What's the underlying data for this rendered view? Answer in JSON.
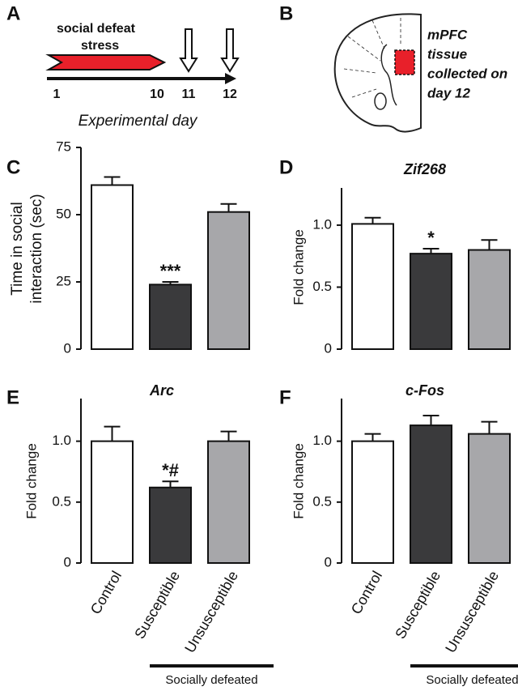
{
  "panel_labels": [
    "A",
    "B",
    "C",
    "D",
    "E",
    "F"
  ],
  "timeline": {
    "stress_label": [
      "social defeat",
      "stress"
    ],
    "days": [
      "1",
      "10",
      "11",
      "12"
    ],
    "axis_label": "Experimental day"
  },
  "brain": {
    "annotation": [
      "mPFC",
      "tissue",
      "collected on",
      "day 12"
    ]
  },
  "chart_data": [
    {
      "type": "bar",
      "ylabel": [
        "Time in social",
        "interaction (sec)"
      ],
      "values": [
        61,
        24,
        51
      ],
      "errors": [
        3,
        1,
        3
      ],
      "colors": [
        "#ffffff",
        "#3a3a3c",
        "#a7a7aa"
      ],
      "significance": [
        null,
        "***",
        null
      ],
      "ylim": [
        0,
        75
      ],
      "yticks": [
        0,
        25,
        50,
        75
      ]
    },
    {
      "type": "bar",
      "title": "Zif268",
      "ylabel": [
        "Fold change"
      ],
      "values": [
        1.01,
        0.77,
        0.8
      ],
      "errors": [
        0.05,
        0.04,
        0.08
      ],
      "colors": [
        "#ffffff",
        "#3a3a3c",
        "#a7a7aa"
      ],
      "significance": [
        null,
        "*",
        null
      ],
      "ylim": [
        0,
        1.3
      ],
      "yticks": [
        0,
        0.5,
        {
          "value": 1,
          "label": "1.0"
        }
      ]
    },
    {
      "type": "bar",
      "title": "Arc",
      "ylabel": [
        "Fold change"
      ],
      "categories": [
        "Control",
        "Susceptible",
        "Unsusceptible"
      ],
      "group_label": "Socially defeated",
      "values": [
        1.0,
        0.62,
        1.0
      ],
      "errors": [
        0.12,
        0.05,
        0.08
      ],
      "colors": [
        "#ffffff",
        "#3a3a3c",
        "#a7a7aa"
      ],
      "significance": [
        null,
        "*#",
        null
      ],
      "ylim": [
        0,
        1.35
      ],
      "yticks": [
        0,
        0.5,
        {
          "value": 1,
          "label": "1.0"
        }
      ]
    },
    {
      "type": "bar",
      "title": "c-Fos",
      "ylabel": [
        "Fold change"
      ],
      "categories": [
        "Control",
        "Susceptible",
        "Unsusceptible"
      ],
      "group_label": "Socially defeated",
      "values": [
        1.0,
        1.13,
        1.06
      ],
      "errors": [
        0.06,
        0.08,
        0.1
      ],
      "colors": [
        "#ffffff",
        "#3a3a3c",
        "#a7a7aa"
      ],
      "ylim": [
        0,
        1.35
      ],
      "yticks": [
        0,
        0.5,
        {
          "value": 1,
          "label": "1.0"
        }
      ]
    }
  ]
}
